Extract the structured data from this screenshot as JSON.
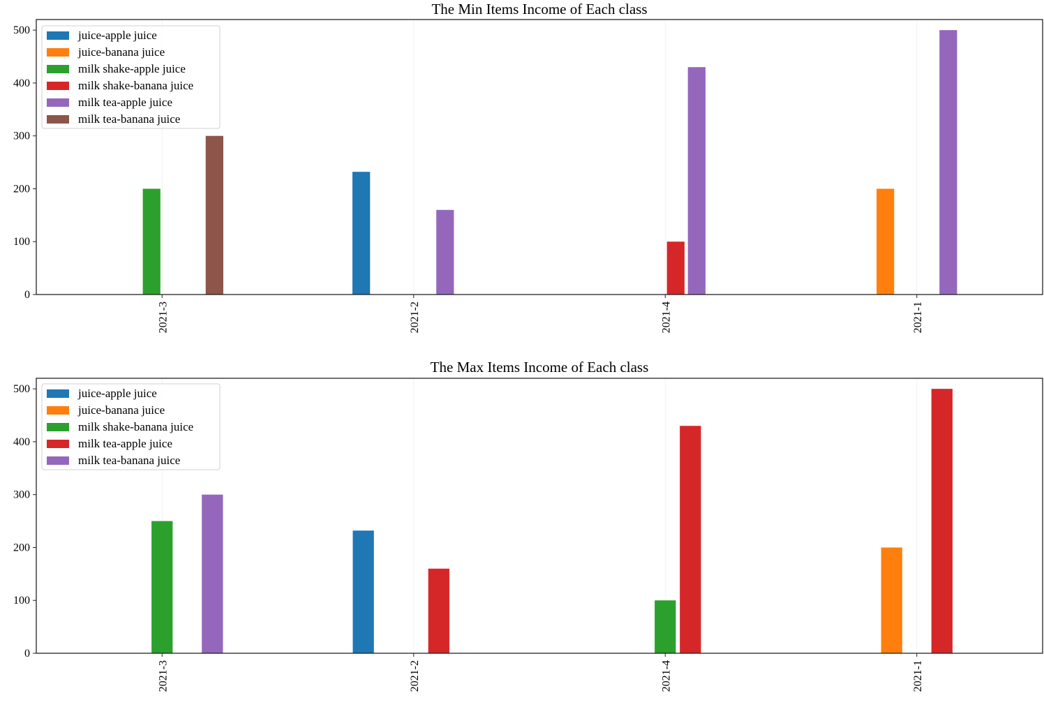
{
  "chart_data": [
    {
      "type": "bar",
      "title": "The Min Items Income of Each class",
      "xlabel": "",
      "ylabel": "",
      "ylim": [
        0,
        520
      ],
      "yticks": [
        0,
        100,
        200,
        300,
        400,
        500
      ],
      "categories": [
        "2021-3",
        "2021-2",
        "2021-4",
        "2021-1"
      ],
      "legend_position": "top-left",
      "series": [
        {
          "name": "juice-apple juice",
          "color": "#1f77b4",
          "values": [
            0,
            232,
            0,
            0
          ]
        },
        {
          "name": "juice-banana juice",
          "color": "#ff7f0e",
          "values": [
            0,
            0,
            0,
            200
          ]
        },
        {
          "name": "milk shake-apple juice",
          "color": "#2ca02c",
          "values": [
            200,
            0,
            0,
            0
          ]
        },
        {
          "name": "milk shake-banana juice",
          "color": "#d62728",
          "values": [
            0,
            0,
            100,
            0
          ]
        },
        {
          "name": "milk tea-apple juice",
          "color": "#9467bd",
          "values": [
            0,
            160,
            430,
            500
          ]
        },
        {
          "name": "milk tea-banana juice",
          "color": "#8c564b",
          "values": [
            300,
            0,
            0,
            0
          ]
        }
      ]
    },
    {
      "type": "bar",
      "title": "The Max Items Income of Each class",
      "xlabel": "",
      "ylabel": "",
      "ylim": [
        0,
        520
      ],
      "yticks": [
        0,
        100,
        200,
        300,
        400,
        500
      ],
      "categories": [
        "2021-3",
        "2021-2",
        "2021-4",
        "2021-1"
      ],
      "legend_position": "top-left",
      "series": [
        {
          "name": "juice-apple juice",
          "color": "#1f77b4",
          "values": [
            0,
            232,
            0,
            0
          ]
        },
        {
          "name": "juice-banana juice",
          "color": "#ff7f0e",
          "values": [
            0,
            0,
            0,
            200
          ]
        },
        {
          "name": "milk shake-banana juice",
          "color": "#2ca02c",
          "values": [
            250,
            0,
            100,
            0
          ]
        },
        {
          "name": "milk tea-apple juice",
          "color": "#d62728",
          "values": [
            0,
            160,
            430,
            500
          ]
        },
        {
          "name": "milk tea-banana juice",
          "color": "#9467bd",
          "values": [
            300,
            0,
            0,
            0
          ]
        }
      ]
    }
  ]
}
